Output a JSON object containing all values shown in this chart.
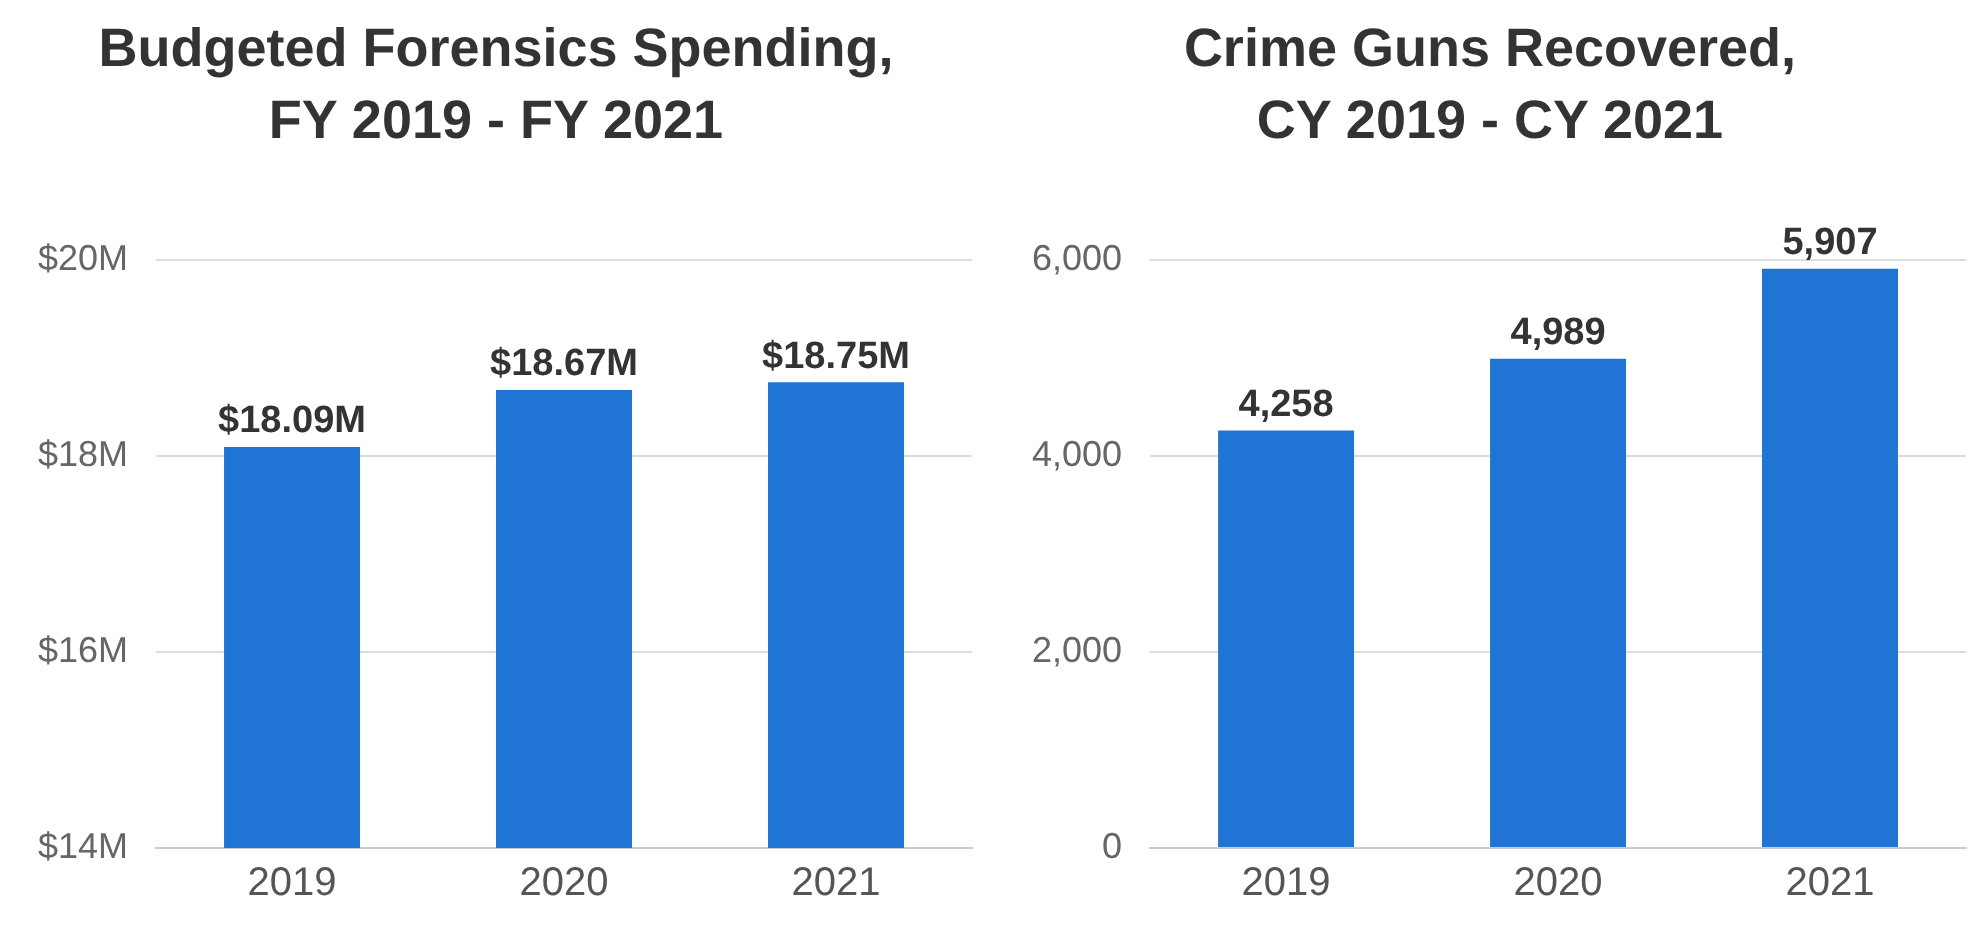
{
  "chart_data": [
    {
      "type": "bar",
      "title": "Budgeted Forensics Spending, FY 2019 - FY 2021",
      "categories": [
        "2019",
        "2020",
        "2021"
      ],
      "values": [
        18.09,
        18.67,
        18.75
      ],
      "value_labels": [
        "$18.09M",
        "$18.67M",
        "$18.75M"
      ],
      "color": "#1f74d4",
      "ylim": [
        14,
        20
      ],
      "yticks": [
        {
          "value": 14,
          "label": "$14M"
        },
        {
          "value": 16,
          "label": "$16M"
        },
        {
          "value": 18,
          "label": "$18M"
        },
        {
          "value": 20,
          "label": "$20M"
        }
      ],
      "grid": "y"
    },
    {
      "type": "bar",
      "title": "Crime Guns Recovered, CY 2019 - CY 2021",
      "categories": [
        "2019",
        "2020",
        "2021"
      ],
      "values": [
        4258,
        4989,
        5907
      ],
      "value_labels": [
        "4,258",
        "4,989",
        "5,907"
      ],
      "color": "#1f74d4",
      "ylim": [
        0,
        6000
      ],
      "yticks": [
        0,
        {
          "value": 2000,
          "label": "2,000"
        },
        {
          "value": 4000,
          "label": "4,000"
        },
        {
          "value": 6000,
          "label": "6,000"
        }
      ],
      "grid": "y"
    }
  ]
}
